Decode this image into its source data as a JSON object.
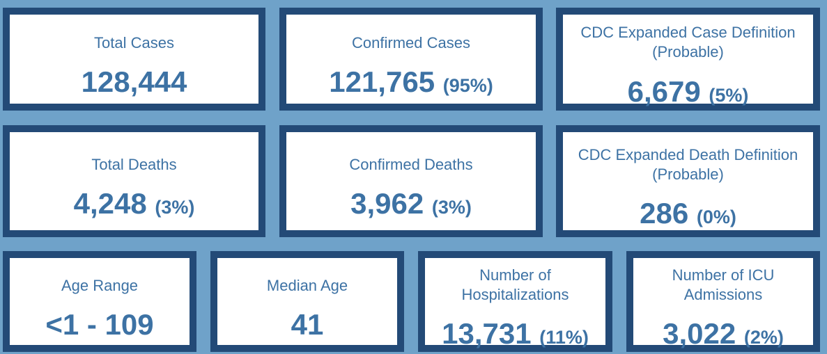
{
  "row1": {
    "total_cases": {
      "label": "Total Cases",
      "value": "128,444"
    },
    "confirmed_cases": {
      "label": "Confirmed Cases",
      "value": "121,765",
      "pct": "(95%)"
    },
    "probable_cases": {
      "label_line1": "CDC Expanded Case Definition",
      "label_line2": "(Probable)",
      "value": "6,679",
      "pct": "(5%)"
    }
  },
  "row2": {
    "total_deaths": {
      "label": "Total Deaths",
      "value": "4,248",
      "pct": "(3%)"
    },
    "confirmed_deaths": {
      "label": "Confirmed Deaths",
      "value": "3,962",
      "pct": "(3%)"
    },
    "probable_deaths": {
      "label_line1": "CDC Expanded Death Definition",
      "label_line2": "(Probable)",
      "value": "286",
      "pct": "(0%)"
    }
  },
  "row3": {
    "age_range": {
      "label": "Age Range",
      "value": "<1 - 109"
    },
    "median_age": {
      "label": "Median Age",
      "value": "41"
    },
    "hospitalizations": {
      "label_line1": "Number of",
      "label_line2": "Hospitalizations",
      "value": "13,731",
      "pct": "(11%)"
    },
    "icu": {
      "label_line1": "Number of ICU",
      "label_line2": "Admissions",
      "value": "3,022",
      "pct": "(2%)"
    }
  },
  "colors": {
    "background": "#6fa2c9",
    "card_border": "#234a77",
    "card_text": "#3d72a4",
    "card_fill": "#ffffff"
  }
}
